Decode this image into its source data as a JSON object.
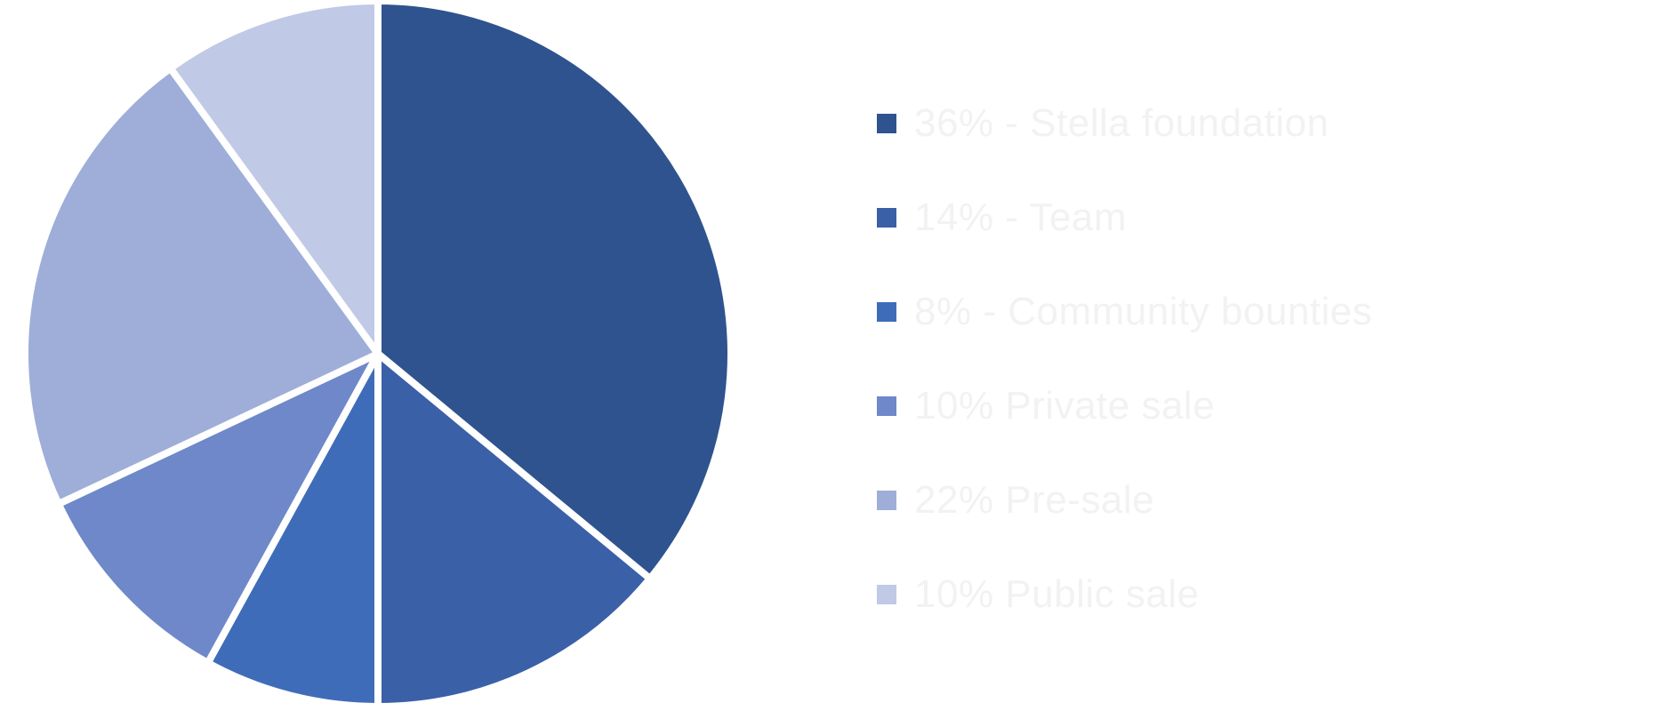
{
  "chart_data": {
    "type": "pie",
    "title": "",
    "slices": [
      {
        "label": "36% - Stella foundation",
        "value": 36,
        "color": "#2f538e"
      },
      {
        "label": "14% - Team",
        "value": 14,
        "color": "#3a60a8"
      },
      {
        "label": "8% - Community bounties",
        "value": 8,
        "color": "#3f6cb9"
      },
      {
        "label": "10% Private sale",
        "value": 10,
        "color": "#6e88c9"
      },
      {
        "label": "22% Pre-sale",
        "value": 22,
        "color": "#9eaed8"
      },
      {
        "label": "10% Public sale",
        "value": 10,
        "color": "#c0c9e5"
      }
    ],
    "legend_position": "right",
    "start_angle_deg": 0,
    "direction": "clockwise"
  }
}
